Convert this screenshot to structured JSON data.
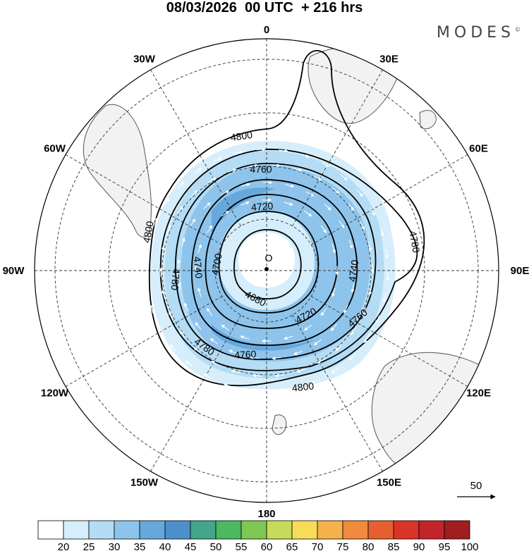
{
  "header": {
    "title": "08/03/2026  00 UTC  + 216 hrs",
    "brand": "MODES",
    "brand_mark": "©"
  },
  "map": {
    "projection": "south polar stereographic",
    "longitude_labels": [
      {
        "lon": 0,
        "text": "0"
      },
      {
        "lon": 30,
        "text": "30E"
      },
      {
        "lon": 60,
        "text": "60E"
      },
      {
        "lon": 90,
        "text": "90E"
      },
      {
        "lon": 120,
        "text": "120E"
      },
      {
        "lon": 150,
        "text": "150E"
      },
      {
        "lon": 180,
        "text": "180"
      },
      {
        "lon": -150,
        "text": "150W"
      },
      {
        "lon": -120,
        "text": "120W"
      },
      {
        "lon": -90,
        "text": "90W"
      },
      {
        "lon": -60,
        "text": "60W"
      },
      {
        "lon": -30,
        "text": "30W"
      }
    ],
    "contour_labels": [
      "4800",
      "4780",
      "4760",
      "4740",
      "4720",
      "4700",
      "4680"
    ],
    "low_marker": "O",
    "vector_scale_text": "50",
    "land_color": "#f2f2f2",
    "coast_color": "#555555"
  },
  "colorbar": {
    "ticks": [
      "20",
      "25",
      "30",
      "35",
      "40",
      "45",
      "50",
      "55",
      "60",
      "65",
      "70",
      "75",
      "80",
      "85",
      "90",
      "95",
      "100"
    ],
    "colors": [
      "#ffffff",
      "#d6eefb",
      "#b4dcf4",
      "#8ec4eb",
      "#66a8dc",
      "#4d8fcb",
      "#43a58a",
      "#4cb860",
      "#7fc754",
      "#c4dc5a",
      "#f7dc5a",
      "#f5b14c",
      "#f08a3e",
      "#e6602f",
      "#d83428",
      "#c2242a",
      "#a01d22"
    ]
  }
}
